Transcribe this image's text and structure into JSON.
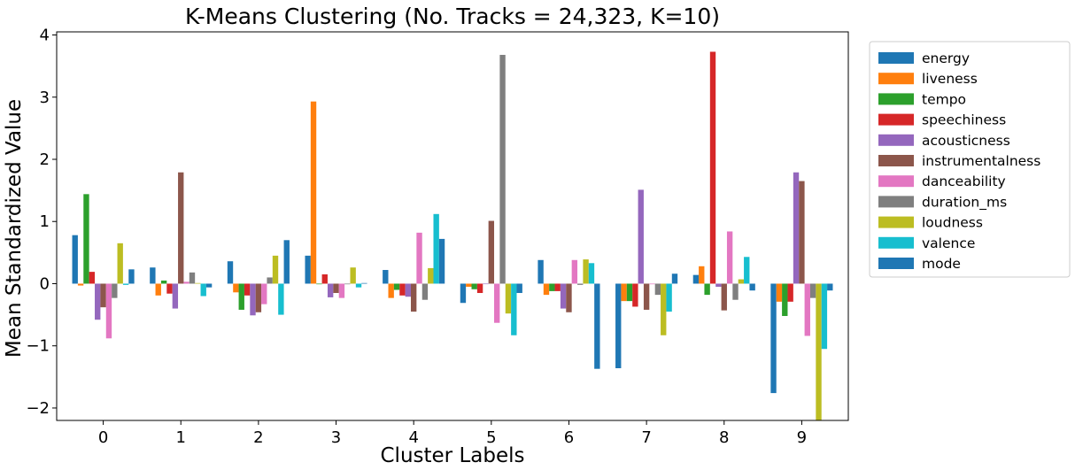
{
  "chart_data": {
    "type": "bar",
    "title": "K-Means Clustering (No. Tracks = 24,323, K=10)",
    "xlabel": "Cluster Labels",
    "ylabel": "Mean Standardized Value",
    "categories": [
      "0",
      "1",
      "2",
      "3",
      "4",
      "5",
      "6",
      "7",
      "8",
      "9"
    ],
    "ylim": [
      -2.2,
      4.05
    ],
    "yticks": [
      -2,
      -1,
      0,
      1,
      2,
      3,
      4
    ],
    "ytick_labels": [
      "−2",
      "−1",
      "0",
      "1",
      "2",
      "3",
      "4"
    ],
    "grid": false,
    "legend_position": "outside-right",
    "series": [
      {
        "name": "energy",
        "color": "#1f77b4",
        "values": [
          0.78,
          0.26,
          0.36,
          0.45,
          0.22,
          -0.31,
          0.38,
          -1.36,
          0.14,
          -1.76
        ]
      },
      {
        "name": "liveness",
        "color": "#ff7f0e",
        "values": [
          -0.03,
          -0.19,
          -0.14,
          2.93,
          -0.23,
          -0.05,
          -0.18,
          -0.28,
          0.28,
          -0.29
        ]
      },
      {
        "name": "tempo",
        "color": "#2ca02c",
        "values": [
          1.44,
          0.05,
          -0.42,
          -0.01,
          -0.1,
          -0.09,
          -0.12,
          -0.28,
          -0.18,
          -0.52
        ]
      },
      {
        "name": "speechiness",
        "color": "#d62728",
        "values": [
          0.19,
          -0.16,
          -0.19,
          0.15,
          -0.19,
          -0.15,
          -0.12,
          -0.37,
          3.73,
          -0.29
        ]
      },
      {
        "name": "acousticness",
        "color": "#9467bd",
        "values": [
          -0.58,
          -0.4,
          -0.51,
          -0.22,
          -0.21,
          0.0,
          -0.4,
          1.51,
          -0.05,
          1.79
        ]
      },
      {
        "name": "instrumentalness",
        "color": "#8c564b",
        "values": [
          -0.38,
          1.79,
          -0.46,
          -0.15,
          -0.45,
          1.01,
          -0.46,
          -0.42,
          -0.43,
          1.65
        ]
      },
      {
        "name": "danceability",
        "color": "#e377c2",
        "values": [
          -0.88,
          0.03,
          -0.33,
          -0.23,
          0.82,
          -0.63,
          0.38,
          -0.01,
          0.84,
          -0.84
        ]
      },
      {
        "name": "duration_ms",
        "color": "#7f7f7f",
        "values": [
          -0.23,
          0.18,
          0.1,
          -0.01,
          -0.26,
          3.68,
          -0.02,
          -0.18,
          -0.26,
          -0.23
        ]
      },
      {
        "name": "loudness",
        "color": "#bcbd22",
        "values": [
          0.65,
          0.01,
          0.45,
          0.26,
          0.25,
          -0.48,
          0.39,
          -0.83,
          0.07,
          -2.2
        ]
      },
      {
        "name": "valence",
        "color": "#17becf",
        "values": [
          -0.02,
          -0.2,
          -0.5,
          -0.06,
          1.12,
          -0.83,
          0.33,
          -0.45,
          0.43,
          -1.05
        ]
      },
      {
        "name": "mode",
        "color": "#1f77b4",
        "values": [
          0.23,
          -0.06,
          0.7,
          0.01,
          0.72,
          -0.15,
          -1.37,
          0.16,
          -0.11,
          -0.11
        ]
      }
    ]
  }
}
